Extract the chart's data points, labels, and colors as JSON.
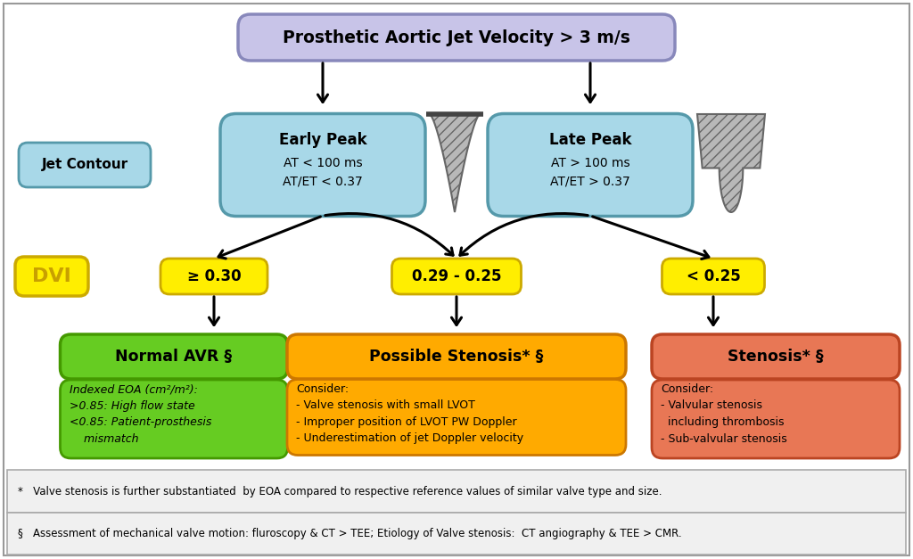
{
  "title": "Prosthetic Aortic Jet Velocity > 3 m/s",
  "title_box_color": "#c8c4e8",
  "title_box_edge": "#8888bb",
  "jet_contour_label": "Jet Contour",
  "jet_contour_color": "#a8d8e8",
  "early_peak_title": "Early Peak",
  "early_peak_sub": "AT < 100 ms\nAT/ET < 0.37",
  "late_peak_title": "Late Peak",
  "late_peak_sub": "AT > 100 ms\nAT/ET > 0.37",
  "peak_box_color": "#a8d8e8",
  "peak_box_edge": "#5599aa",
  "dvi_label": "DVI",
  "dvi_label_text_color": "#c8a000",
  "dvi_val1": "≥ 0.30",
  "dvi_val2": "0.29 - 0.25",
  "dvi_val3": "< 0.25",
  "dvi_val_color": "#ffee00",
  "dvi_val_edge": "#ccaa00",
  "normal_avr_title": "Normal AVR §",
  "normal_avr_color": "#66cc22",
  "normal_avr_edge": "#449900",
  "possible_stenosis_title": "Possible Stenosis* §",
  "possible_stenosis_color": "#ffaa00",
  "possible_stenosis_edge": "#cc7700",
  "stenosis_title": "Stenosis* §",
  "stenosis_color": "#e87755",
  "stenosis_edge": "#bb4422",
  "normal_avr_detail_line1": "Indexed EOA (cm²/m²):",
  "normal_avr_detail_line2": ">0.85: High flow state",
  "normal_avr_detail_line3": "<0.85: Patient-prosthesis",
  "normal_avr_detail_line4": "    mismatch",
  "normal_detail_color": "#66cc22",
  "normal_detail_edge": "#449900",
  "possible_detail_title": "Consider:",
  "possible_detail_l1": "- Valve stenosis with small LVOT",
  "possible_detail_l2": "- Improper position of LVOT PW Doppler",
  "possible_detail_l3": "- Underestimation of jet Doppler velocity",
  "possible_detail_color": "#ffaa00",
  "possible_detail_edge": "#cc7700",
  "stenosis_detail_title": "Consider:",
  "stenosis_detail_l1": "- Valvular stenosis",
  "stenosis_detail_l2": "  including thrombosis",
  "stenosis_detail_l3": "- Sub-valvular stenosis",
  "stenosis_detail_color": "#e87755",
  "stenosis_detail_edge": "#bb4422",
  "footnote1_sym": "*",
  "footnote1_text": "Valve stenosis is further substantiated  by EOA compared to respective reference values of similar valve type and size.",
  "footnote2_sym": "§",
  "footnote2_text": "Assessment of mechanical valve motion: fluroscopy & CT > TEE; Etiology of Valve stenosis:  CT angiography & TEE > CMR.",
  "bg_color": "#ffffff",
  "footnote_bg": "#f0f0f0",
  "footnote_border": "#aaaaaa"
}
